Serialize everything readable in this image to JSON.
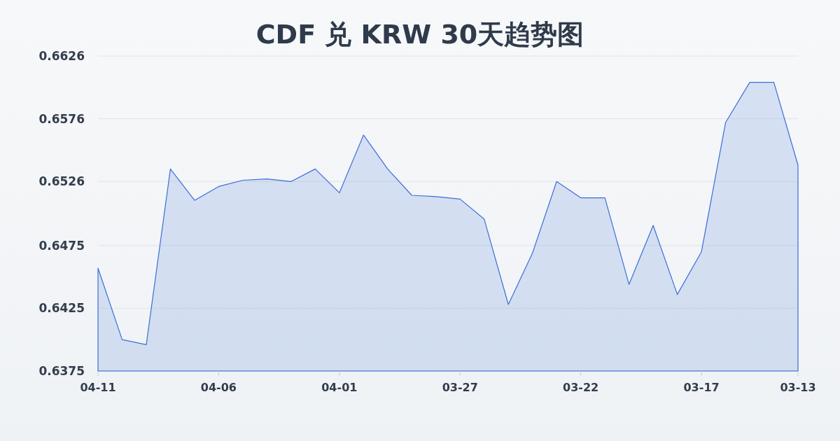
{
  "chart_data": {
    "type": "area",
    "title": "CDF 兑 KRW 30天趋势图",
    "x": [
      "--04-11",
      "--04-10",
      "--04-09",
      "--04-08",
      "--04-07",
      "--04-06",
      "--04-05",
      "--04-04",
      "--04-03",
      "--04-02",
      "--04-01",
      "--03-31",
      "--03-30",
      "--03-29",
      "--03-28",
      "--03-27",
      "--03-26",
      "--03-25",
      "--03-24",
      "--03-23",
      "--03-22",
      "--03-21",
      "--03-20",
      "--03-19",
      "--03-18",
      "--03-17",
      "--03-16",
      "--03-15",
      "--03-14",
      "--03-13"
    ],
    "values": [
      0.6457,
      0.64,
      0.6396,
      0.6536,
      0.6511,
      0.6522,
      0.6527,
      0.6528,
      0.6526,
      0.6536,
      0.6517,
      0.6563,
      0.6536,
      0.6515,
      0.6514,
      0.6512,
      0.6496,
      0.6428,
      0.6469,
      0.6526,
      0.6513,
      0.6513,
      0.6444,
      0.6491,
      0.6436,
      0.647,
      0.6573,
      0.6605,
      0.6605,
      0.6539
    ],
    "color": "#3a6fd8",
    "xlim": [
      "--04-11",
      "--03-13"
    ],
    "xticks": [
      {
        "value": "--04-11",
        "label": "04-11"
      },
      {
        "value": "--04-06",
        "label": "04-06"
      },
      {
        "value": "--04-01",
        "label": "04-01"
      },
      {
        "value": "--03-27",
        "label": "03-27"
      },
      {
        "value": "--03-22",
        "label": "03-22"
      },
      {
        "value": "--03-17",
        "label": "03-17"
      },
      {
        "value": "--03-13",
        "label": "03-13"
      }
    ],
    "ylim": [
      0.6375,
      0.6626
    ],
    "yticks": [
      0.6375,
      0.6425,
      0.6475,
      0.6526,
      0.6576,
      0.6626
    ],
    "grid": "y"
  }
}
